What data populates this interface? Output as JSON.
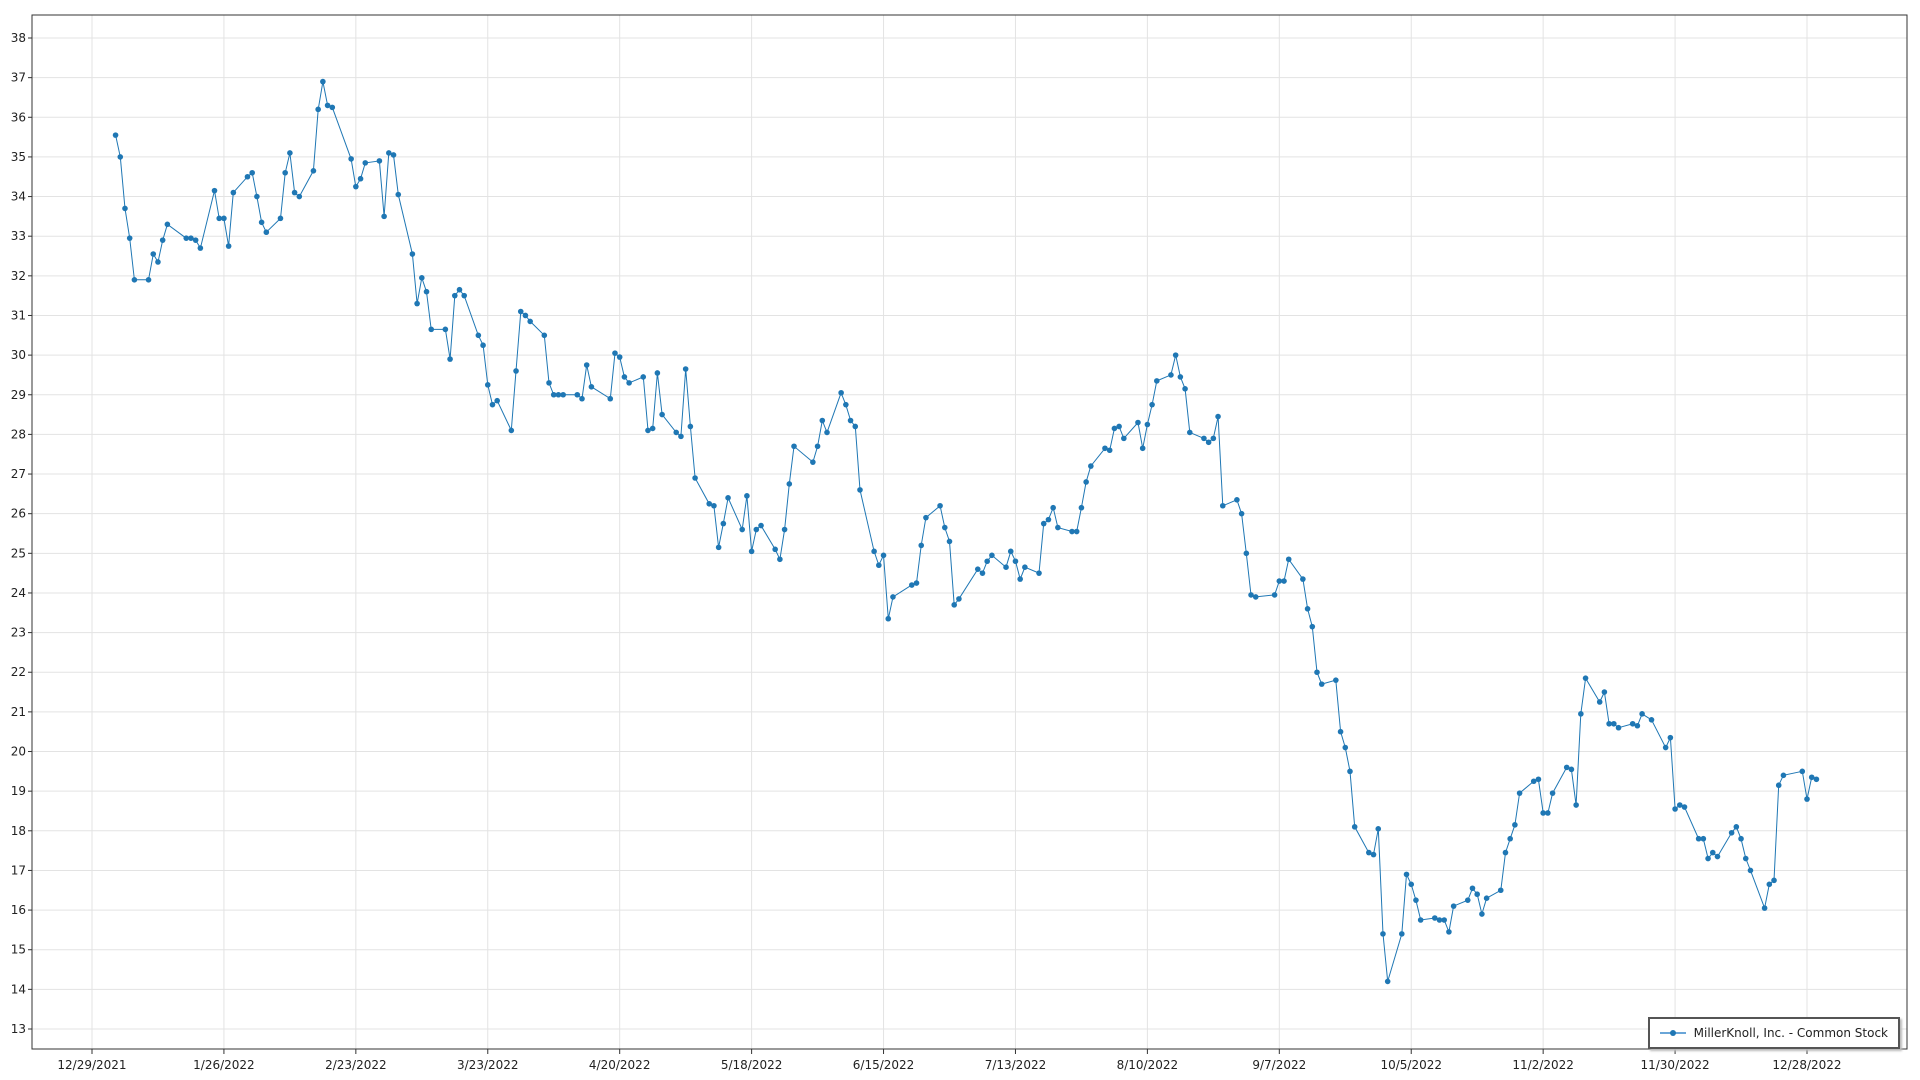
{
  "chart_data": {
    "type": "line",
    "title": "",
    "xlabel": "",
    "ylabel": "",
    "ylim": [
      12.5,
      38.5
    ],
    "yticks": [
      13,
      14,
      15,
      16,
      17,
      18,
      19,
      20,
      21,
      22,
      23,
      24,
      25,
      26,
      27,
      28,
      29,
      30,
      31,
      32,
      33,
      34,
      35,
      36,
      37,
      38
    ],
    "xticks": [
      "12/29/2021",
      "1/26/2022",
      "2/23/2022",
      "3/23/2022",
      "4/20/2022",
      "5/18/2022",
      "6/15/2022",
      "7/13/2022",
      "8/10/2022",
      "9/7/2022",
      "10/5/2022",
      "11/2/2022",
      "11/30/2022",
      "12/28/2022"
    ],
    "grid": true,
    "legend_placement": "bottom-right",
    "line_color": "#1f77b4",
    "series": [
      {
        "name": "MillerKnoll, Inc. - Common Stock",
        "points": [
          [
            "2022-01-03",
            35.55
          ],
          [
            "2022-01-04",
            35.0
          ],
          [
            "2022-01-05",
            33.7
          ],
          [
            "2022-01-06",
            32.95
          ],
          [
            "2022-01-07",
            31.9
          ],
          [
            "2022-01-10",
            31.9
          ],
          [
            "2022-01-11",
            32.55
          ],
          [
            "2022-01-12",
            32.35
          ],
          [
            "2022-01-13",
            32.9
          ],
          [
            "2022-01-14",
            33.3
          ],
          [
            "2022-01-18",
            32.95
          ],
          [
            "2022-01-19",
            32.95
          ],
          [
            "2022-01-20",
            32.9
          ],
          [
            "2022-01-21",
            32.7
          ],
          [
            "2022-01-24",
            34.15
          ],
          [
            "2022-01-25",
            33.45
          ],
          [
            "2022-01-26",
            33.45
          ],
          [
            "2022-01-27",
            32.75
          ],
          [
            "2022-01-28",
            34.1
          ],
          [
            "2022-01-31",
            34.5
          ],
          [
            "2022-02-01",
            34.6
          ],
          [
            "2022-02-02",
            34.0
          ],
          [
            "2022-02-03",
            33.35
          ],
          [
            "2022-02-04",
            33.1
          ],
          [
            "2022-02-07",
            33.45
          ],
          [
            "2022-02-08",
            34.6
          ],
          [
            "2022-02-09",
            35.1
          ],
          [
            "2022-02-10",
            34.1
          ],
          [
            "2022-02-11",
            34.0
          ],
          [
            "2022-02-14",
            34.65
          ],
          [
            "2022-02-15",
            36.2
          ],
          [
            "2022-02-16",
            36.9
          ],
          [
            "2022-02-17",
            36.3
          ],
          [
            "2022-02-18",
            36.25
          ],
          [
            "2022-02-22",
            34.95
          ],
          [
            "2022-02-23",
            34.25
          ],
          [
            "2022-02-24",
            34.45
          ],
          [
            "2022-02-25",
            34.85
          ],
          [
            "2022-02-28",
            34.9
          ],
          [
            "2022-03-01",
            33.5
          ],
          [
            "2022-03-02",
            35.1
          ],
          [
            "2022-03-03",
            35.05
          ],
          [
            "2022-03-04",
            34.05
          ],
          [
            "2022-03-07",
            32.55
          ],
          [
            "2022-03-08",
            31.3
          ],
          [
            "2022-03-09",
            31.95
          ],
          [
            "2022-03-10",
            31.6
          ],
          [
            "2022-03-11",
            30.65
          ],
          [
            "2022-03-14",
            30.65
          ],
          [
            "2022-03-15",
            29.9
          ],
          [
            "2022-03-16",
            31.5
          ],
          [
            "2022-03-17",
            31.65
          ],
          [
            "2022-03-18",
            31.5
          ],
          [
            "2022-03-21",
            30.5
          ],
          [
            "2022-03-22",
            30.25
          ],
          [
            "2022-03-23",
            29.25
          ],
          [
            "2022-03-24",
            28.75
          ],
          [
            "2022-03-25",
            28.85
          ],
          [
            "2022-03-28",
            28.1
          ],
          [
            "2022-03-29",
            29.6
          ],
          [
            "2022-03-30",
            31.1
          ],
          [
            "2022-03-31",
            31.0
          ],
          [
            "2022-04-01",
            30.85
          ],
          [
            "2022-04-04",
            30.5
          ],
          [
            "2022-04-05",
            29.3
          ],
          [
            "2022-04-06",
            29.0
          ],
          [
            "2022-04-07",
            29.0
          ],
          [
            "2022-04-08",
            29.0
          ],
          [
            "2022-04-11",
            29.0
          ],
          [
            "2022-04-12",
            28.9
          ],
          [
            "2022-04-13",
            29.75
          ],
          [
            "2022-04-14",
            29.2
          ],
          [
            "2022-04-18",
            28.9
          ],
          [
            "2022-04-19",
            30.05
          ],
          [
            "2022-04-20",
            29.95
          ],
          [
            "2022-04-21",
            29.45
          ],
          [
            "2022-04-22",
            29.3
          ],
          [
            "2022-04-25",
            29.45
          ],
          [
            "2022-04-26",
            28.1
          ],
          [
            "2022-04-27",
            28.15
          ],
          [
            "2022-04-28",
            29.55
          ],
          [
            "2022-04-29",
            28.5
          ],
          [
            "2022-05-02",
            28.05
          ],
          [
            "2022-05-03",
            27.95
          ],
          [
            "2022-05-04",
            29.65
          ],
          [
            "2022-05-05",
            28.2
          ],
          [
            "2022-05-06",
            26.9
          ],
          [
            "2022-05-09",
            26.25
          ],
          [
            "2022-05-10",
            26.2
          ],
          [
            "2022-05-11",
            25.15
          ],
          [
            "2022-05-12",
            25.75
          ],
          [
            "2022-05-13",
            26.4
          ],
          [
            "2022-05-16",
            25.6
          ],
          [
            "2022-05-17",
            26.45
          ],
          [
            "2022-05-18",
            25.05
          ],
          [
            "2022-05-19",
            25.6
          ],
          [
            "2022-05-20",
            25.7
          ],
          [
            "2022-05-23",
            25.1
          ],
          [
            "2022-05-24",
            24.85
          ],
          [
            "2022-05-25",
            25.6
          ],
          [
            "2022-05-26",
            26.75
          ],
          [
            "2022-05-27",
            27.7
          ],
          [
            "2022-05-31",
            27.3
          ],
          [
            "2022-06-01",
            27.7
          ],
          [
            "2022-06-02",
            28.35
          ],
          [
            "2022-06-03",
            28.05
          ],
          [
            "2022-06-06",
            29.05
          ],
          [
            "2022-06-07",
            28.75
          ],
          [
            "2022-06-08",
            28.35
          ],
          [
            "2022-06-09",
            28.2
          ],
          [
            "2022-06-10",
            26.6
          ],
          [
            "2022-06-13",
            25.05
          ],
          [
            "2022-06-14",
            24.7
          ],
          [
            "2022-06-15",
            24.95
          ],
          [
            "2022-06-16",
            23.35
          ],
          [
            "2022-06-17",
            23.9
          ],
          [
            "2022-06-21",
            24.2
          ],
          [
            "2022-06-22",
            24.25
          ],
          [
            "2022-06-23",
            25.2
          ],
          [
            "2022-06-24",
            25.9
          ],
          [
            "2022-06-27",
            26.2
          ],
          [
            "2022-06-28",
            25.65
          ],
          [
            "2022-06-29",
            25.3
          ],
          [
            "2022-06-30",
            23.7
          ],
          [
            "2022-07-01",
            23.85
          ],
          [
            "2022-07-05",
            24.6
          ],
          [
            "2022-07-06",
            24.5
          ],
          [
            "2022-07-07",
            24.8
          ],
          [
            "2022-07-08",
            24.95
          ],
          [
            "2022-07-11",
            24.65
          ],
          [
            "2022-07-12",
            25.05
          ],
          [
            "2022-07-13",
            24.8
          ],
          [
            "2022-07-14",
            24.35
          ],
          [
            "2022-07-15",
            24.65
          ],
          [
            "2022-07-18",
            24.5
          ],
          [
            "2022-07-19",
            25.75
          ],
          [
            "2022-07-20",
            25.85
          ],
          [
            "2022-07-21",
            26.15
          ],
          [
            "2022-07-22",
            25.65
          ],
          [
            "2022-07-25",
            25.55
          ],
          [
            "2022-07-26",
            25.55
          ],
          [
            "2022-07-27",
            26.15
          ],
          [
            "2022-07-28",
            26.8
          ],
          [
            "2022-07-29",
            27.2
          ],
          [
            "2022-08-01",
            27.65
          ],
          [
            "2022-08-02",
            27.6
          ],
          [
            "2022-08-03",
            28.15
          ],
          [
            "2022-08-04",
            28.2
          ],
          [
            "2022-08-05",
            27.9
          ],
          [
            "2022-08-08",
            28.3
          ],
          [
            "2022-08-09",
            27.65
          ],
          [
            "2022-08-10",
            28.25
          ],
          [
            "2022-08-11",
            28.75
          ],
          [
            "2022-08-12",
            29.35
          ],
          [
            "2022-08-15",
            29.5
          ],
          [
            "2022-08-16",
            30.0
          ],
          [
            "2022-08-17",
            29.45
          ],
          [
            "2022-08-18",
            29.15
          ],
          [
            "2022-08-19",
            28.05
          ],
          [
            "2022-08-22",
            27.9
          ],
          [
            "2022-08-23",
            27.8
          ],
          [
            "2022-08-24",
            27.9
          ],
          [
            "2022-08-25",
            28.45
          ],
          [
            "2022-08-26",
            26.2
          ],
          [
            "2022-08-29",
            26.35
          ],
          [
            "2022-08-30",
            26.0
          ],
          [
            "2022-08-31",
            25.0
          ],
          [
            "2022-09-01",
            23.95
          ],
          [
            "2022-09-02",
            23.9
          ],
          [
            "2022-09-06",
            23.95
          ],
          [
            "2022-09-07",
            24.3
          ],
          [
            "2022-09-08",
            24.3
          ],
          [
            "2022-09-09",
            24.85
          ],
          [
            "2022-09-12",
            24.35
          ],
          [
            "2022-09-13",
            23.6
          ],
          [
            "2022-09-14",
            23.15
          ],
          [
            "2022-09-15",
            22.0
          ],
          [
            "2022-09-16",
            21.7
          ],
          [
            "2022-09-19",
            21.8
          ],
          [
            "2022-09-20",
            20.5
          ],
          [
            "2022-09-21",
            20.1
          ],
          [
            "2022-09-22",
            19.5
          ],
          [
            "2022-09-23",
            18.1
          ],
          [
            "2022-09-26",
            17.45
          ],
          [
            "2022-09-27",
            17.4
          ],
          [
            "2022-09-28",
            18.05
          ],
          [
            "2022-09-29",
            15.4
          ],
          [
            "2022-09-30",
            14.2
          ],
          [
            "2022-10-03",
            15.4
          ],
          [
            "2022-10-04",
            16.9
          ],
          [
            "2022-10-05",
            16.65
          ],
          [
            "2022-10-06",
            16.25
          ],
          [
            "2022-10-07",
            15.75
          ],
          [
            "2022-10-10",
            15.8
          ],
          [
            "2022-10-11",
            15.75
          ],
          [
            "2022-10-12",
            15.75
          ],
          [
            "2022-10-13",
            15.45
          ],
          [
            "2022-10-14",
            16.1
          ],
          [
            "2022-10-17",
            16.25
          ],
          [
            "2022-10-18",
            16.55
          ],
          [
            "2022-10-19",
            16.4
          ],
          [
            "2022-10-20",
            15.9
          ],
          [
            "2022-10-21",
            16.3
          ],
          [
            "2022-10-24",
            16.5
          ],
          [
            "2022-10-25",
            17.45
          ],
          [
            "2022-10-26",
            17.8
          ],
          [
            "2022-10-27",
            18.15
          ],
          [
            "2022-10-28",
            18.95
          ],
          [
            "2022-10-31",
            19.25
          ],
          [
            "2022-11-01",
            19.3
          ],
          [
            "2022-11-02",
            18.45
          ],
          [
            "2022-11-03",
            18.45
          ],
          [
            "2022-11-04",
            18.95
          ],
          [
            "2022-11-07",
            19.6
          ],
          [
            "2022-11-08",
            19.55
          ],
          [
            "2022-11-09",
            18.65
          ],
          [
            "2022-11-10",
            20.95
          ],
          [
            "2022-11-11",
            21.85
          ],
          [
            "2022-11-14",
            21.25
          ],
          [
            "2022-11-15",
            21.5
          ],
          [
            "2022-11-16",
            20.7
          ],
          [
            "2022-11-17",
            20.7
          ],
          [
            "2022-11-18",
            20.6
          ],
          [
            "2022-11-21",
            20.7
          ],
          [
            "2022-11-22",
            20.65
          ],
          [
            "2022-11-23",
            20.95
          ],
          [
            "2022-11-25",
            20.8
          ],
          [
            "2022-11-28",
            20.1
          ],
          [
            "2022-11-29",
            20.35
          ],
          [
            "2022-11-30",
            18.55
          ],
          [
            "2022-12-01",
            18.65
          ],
          [
            "2022-12-02",
            18.6
          ],
          [
            "2022-12-05",
            17.8
          ],
          [
            "2022-12-06",
            17.8
          ],
          [
            "2022-12-07",
            17.3
          ],
          [
            "2022-12-08",
            17.45
          ],
          [
            "2022-12-09",
            17.35
          ],
          [
            "2022-12-12",
            17.95
          ],
          [
            "2022-12-13",
            18.1
          ],
          [
            "2022-12-14",
            17.8
          ],
          [
            "2022-12-15",
            17.3
          ],
          [
            "2022-12-16",
            17.0
          ],
          [
            "2022-12-19",
            16.05
          ],
          [
            "2022-12-20",
            16.65
          ],
          [
            "2022-12-21",
            16.75
          ],
          [
            "2022-12-22",
            19.15
          ],
          [
            "2022-12-23",
            19.4
          ],
          [
            "2022-12-27",
            19.5
          ],
          [
            "2022-12-28",
            18.8
          ],
          [
            "2022-12-29",
            19.35
          ],
          [
            "2022-12-30",
            19.3
          ]
        ]
      }
    ]
  }
}
